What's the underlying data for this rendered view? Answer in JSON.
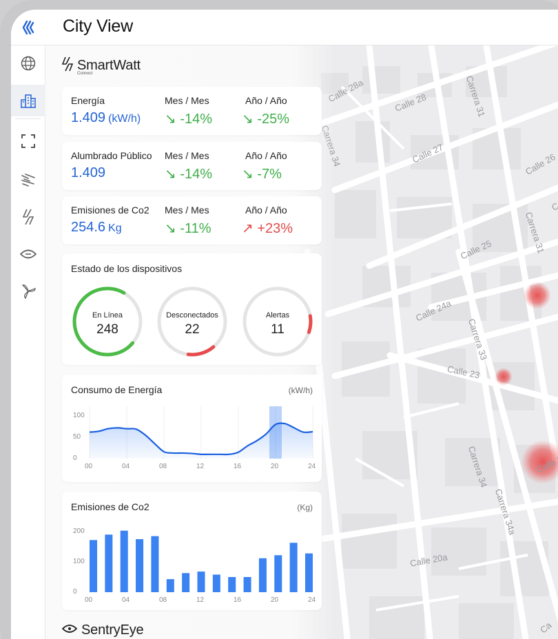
{
  "header": {
    "title": "City View"
  },
  "sidebar": {
    "items": [
      "logo-icon",
      "globe-icon",
      "buildings-icon",
      "fullscreen-icon",
      "wind-icon",
      "bolt-icon",
      "eye-icon",
      "fan-icon"
    ],
    "active": "buildings-icon"
  },
  "brand": {
    "name": "SmartWatt",
    "sub": "Connect"
  },
  "footer_brand": {
    "name": "SentryEye"
  },
  "kpis": [
    {
      "label": "Energía",
      "value": "1.409",
      "unit": "(kW/h)",
      "mm_label": "Mes / Mes",
      "mm_value": "↘ -14%",
      "mm_status": "down",
      "aa_label": "Año / Año",
      "aa_value": "↘ -25%",
      "aa_status": "down"
    },
    {
      "label": "Alumbrado Público",
      "value": "1.409",
      "unit": "",
      "mm_label": "Mes / Mes",
      "mm_value": "↘ -14%",
      "mm_status": "down",
      "aa_label": "Año / Año",
      "aa_value": "↘ -7%",
      "aa_status": "down"
    },
    {
      "label": "Emisiones de Co2",
      "value": "254.6",
      "unit": "Kg",
      "mm_label": "Mes / Mes",
      "mm_value": "↘ -11%",
      "mm_status": "down",
      "aa_label": "Año / Año",
      "aa_value": "↗ +23%",
      "aa_status": "up"
    }
  ],
  "devices": {
    "title": "Estado de los dispositivos",
    "gauges": [
      {
        "label": "En Línea",
        "value": "248",
        "fraction": 0.72,
        "color": "#4cbb47"
      },
      {
        "label": "Desconectados",
        "value": "22",
        "fraction": 0.13,
        "color": "#e84b4b"
      },
      {
        "label": "Alertas",
        "value": "11",
        "fraction": 0.08,
        "color": "#e84b4b"
      }
    ]
  },
  "colors": {
    "accent": "#2463d6",
    "line": "#1a5fe0",
    "bar": "#3b82f2",
    "hotspot": "#e83c3c"
  },
  "chart_data": [
    {
      "type": "area",
      "title": "Consumo de Energía",
      "unit": "(kW/h)",
      "x_ticks": [
        "00",
        "04",
        "08",
        "12",
        "16",
        "20",
        "24"
      ],
      "y_ticks": [
        "100",
        "50",
        "0"
      ],
      "ylim": [
        0,
        100
      ],
      "xlim": [
        0,
        24
      ],
      "x": [
        0,
        1,
        2,
        3,
        4,
        5,
        6,
        7,
        8,
        9,
        10,
        11,
        12,
        13,
        14,
        15,
        16,
        17,
        18,
        19,
        20,
        21,
        22,
        23,
        24
      ],
      "y": [
        62,
        64,
        70,
        72,
        70,
        69,
        55,
        35,
        16,
        13,
        13,
        12,
        10,
        10,
        10,
        10,
        15,
        30,
        42,
        58,
        80,
        82,
        72,
        62,
        63
      ],
      "highlight_x": 20,
      "grid": true
    },
    {
      "type": "bar",
      "title": "Emisiones de Co2",
      "unit": "(Kg)",
      "x_ticks": [
        "00",
        "04",
        "08",
        "12",
        "16",
        "20",
        "24"
      ],
      "y_ticks": [
        "200",
        "100",
        "0"
      ],
      "ylim": [
        0,
        200
      ],
      "xlim": [
        0,
        24
      ],
      "values": [
        172,
        190,
        203,
        175,
        185,
        43,
        63,
        68,
        58,
        50,
        50,
        112,
        122,
        163,
        128
      ],
      "grid": false
    }
  ],
  "map_labels": [
    {
      "text": "Calle 28a"
    },
    {
      "text": "Calle 28"
    },
    {
      "text": "Carrera 31"
    },
    {
      "text": "Calle 27"
    },
    {
      "text": "Carrera 34"
    },
    {
      "text": "Calle 26"
    },
    {
      "text": "Carrera 31"
    },
    {
      "text": "Calle 25"
    },
    {
      "text": "Calle 24a"
    },
    {
      "text": "Carrera 33"
    },
    {
      "text": "Calle 23"
    },
    {
      "text": "Carrera 34"
    },
    {
      "text": "Carrera 34a"
    },
    {
      "text": "Calle 20a"
    },
    {
      "text": "Calle 2"
    },
    {
      "text": "Cal"
    },
    {
      "text": "Ca"
    }
  ]
}
